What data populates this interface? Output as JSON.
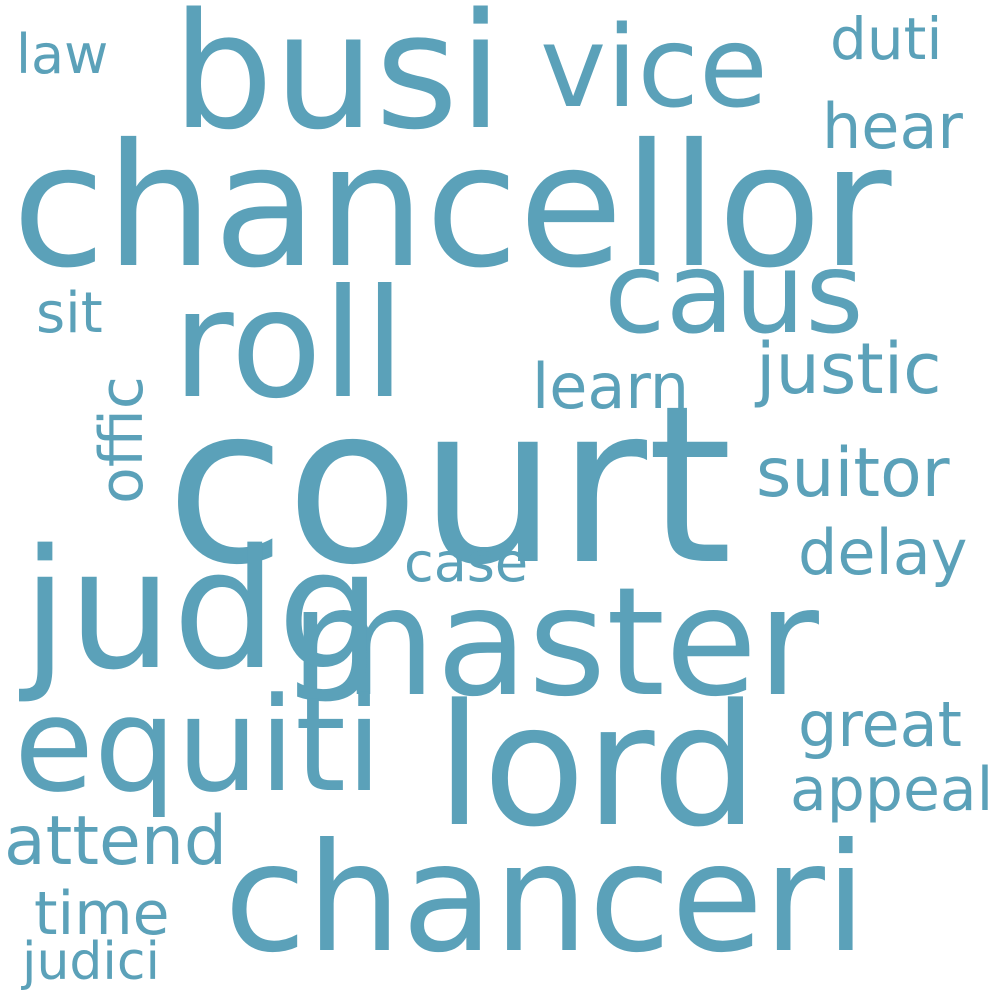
{
  "cloud": {
    "color": "#5ba1b9",
    "background": "#ffffff",
    "words": [
      {
        "key": "court",
        "text": "court"
      },
      {
        "key": "chancellor",
        "text": "chancellor"
      },
      {
        "key": "busi",
        "text": "busi"
      },
      {
        "key": "master",
        "text": "master"
      },
      {
        "key": "chanceri",
        "text": "chanceri"
      },
      {
        "key": "judg",
        "text": "judg"
      },
      {
        "key": "roll",
        "text": "roll"
      },
      {
        "key": "lord",
        "text": "lord"
      },
      {
        "key": "equiti",
        "text": "equiti"
      },
      {
        "key": "vice",
        "text": "vice"
      },
      {
        "key": "caus",
        "text": "caus"
      },
      {
        "key": "justic",
        "text": "justic"
      },
      {
        "key": "suitor",
        "text": "suitor"
      },
      {
        "key": "learn",
        "text": "learn"
      },
      {
        "key": "delay",
        "text": "delay"
      },
      {
        "key": "great",
        "text": "great"
      },
      {
        "key": "appeal",
        "text": "appeal"
      },
      {
        "key": "attend",
        "text": "attend"
      },
      {
        "key": "offic",
        "text": "offic"
      },
      {
        "key": "hear",
        "text": "hear"
      },
      {
        "key": "duti",
        "text": "duti"
      },
      {
        "key": "time",
        "text": "time"
      },
      {
        "key": "case",
        "text": "case"
      },
      {
        "key": "sit",
        "text": "sit"
      },
      {
        "key": "law",
        "text": "law"
      },
      {
        "key": "judici",
        "text": "judici"
      }
    ]
  }
}
